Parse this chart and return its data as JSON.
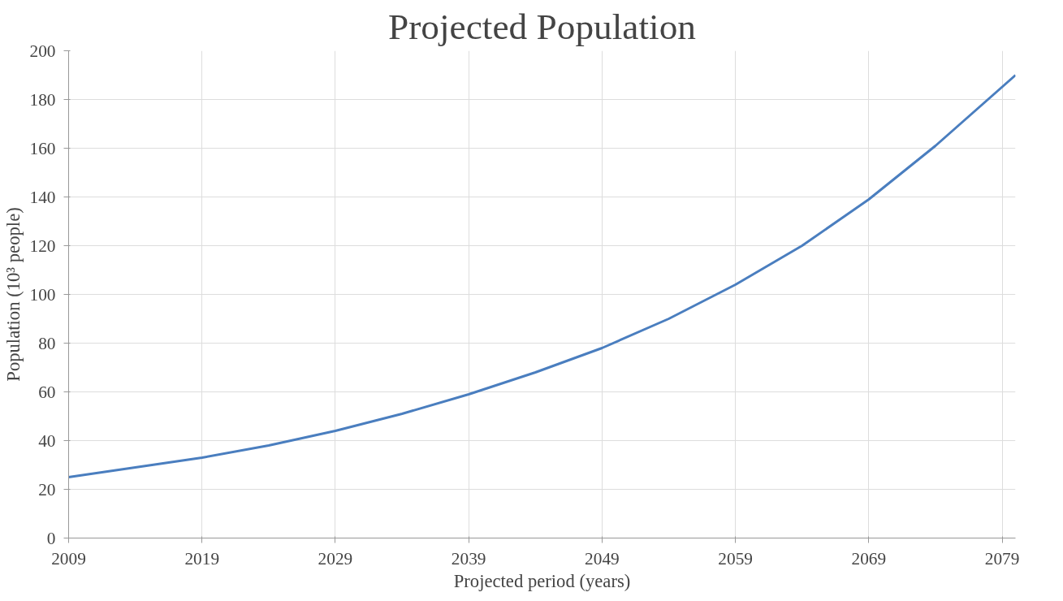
{
  "chart_data": {
    "type": "line",
    "title": "Projected Population",
    "xlabel": "Projected period (years)",
    "ylabel": "Population (10³ people)",
    "x": [
      2009,
      2014,
      2019,
      2024,
      2029,
      2034,
      2039,
      2044,
      2049,
      2054,
      2059,
      2064,
      2069,
      2074,
      2080
    ],
    "series": [
      {
        "color": "#4a7ebf",
        "values": [
          25,
          29,
          33,
          38,
          44,
          51,
          59,
          68,
          78,
          90,
          104,
          120,
          139,
          161,
          190
        ]
      }
    ],
    "xlim": [
      2009,
      2080
    ],
    "xticks": [
      2009,
      2019,
      2029,
      2039,
      2049,
      2059,
      2069,
      2079
    ],
    "ylim": [
      0,
      200
    ],
    "yticks": [
      0,
      20,
      40,
      60,
      80,
      100,
      120,
      140,
      160,
      180,
      200
    ],
    "grid": true,
    "marker": "none",
    "line_style": "solid"
  }
}
